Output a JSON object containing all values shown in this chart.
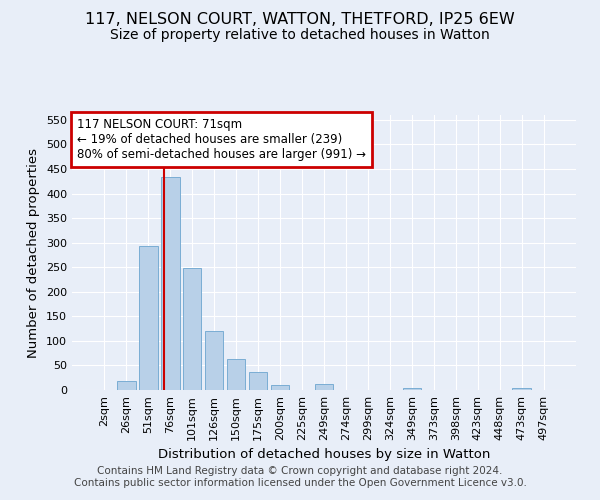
{
  "title": "117, NELSON COURT, WATTON, THETFORD, IP25 6EW",
  "subtitle": "Size of property relative to detached houses in Watton",
  "xlabel": "Distribution of detached houses by size in Watton",
  "ylabel": "Number of detached properties",
  "bar_labels": [
    "2sqm",
    "26sqm",
    "51sqm",
    "76sqm",
    "101sqm",
    "126sqm",
    "150sqm",
    "175sqm",
    "200sqm",
    "225sqm",
    "249sqm",
    "274sqm",
    "299sqm",
    "324sqm",
    "349sqm",
    "373sqm",
    "398sqm",
    "423sqm",
    "448sqm",
    "473sqm",
    "497sqm"
  ],
  "bar_values": [
    0,
    18,
    293,
    433,
    249,
    120,
    64,
    36,
    10,
    0,
    12,
    0,
    0,
    0,
    4,
    0,
    0,
    0,
    0,
    5,
    0
  ],
  "bar_color": "#b8d0e8",
  "bar_edge_color": "#7aadd4",
  "ylim": [
    0,
    560
  ],
  "yticks": [
    0,
    50,
    100,
    150,
    200,
    250,
    300,
    350,
    400,
    450,
    500,
    550
  ],
  "property_line_bin": 2.72,
  "annotation_title": "117 NELSON COURT: 71sqm",
  "annotation_line1": "← 19% of detached houses are smaller (239)",
  "annotation_line2": "80% of semi-detached houses are larger (991) →",
  "annotation_box_color": "#ffffff",
  "annotation_border_color": "#cc0000",
  "footer_line1": "Contains HM Land Registry data © Crown copyright and database right 2024.",
  "footer_line2": "Contains public sector information licensed under the Open Government Licence v3.0.",
  "background_color": "#e8eef8",
  "grid_color": "#ffffff",
  "red_line_color": "#cc0000",
  "title_fontsize": 11.5,
  "subtitle_fontsize": 10,
  "axis_label_fontsize": 9.5,
  "tick_fontsize": 8,
  "footer_fontsize": 7.5
}
